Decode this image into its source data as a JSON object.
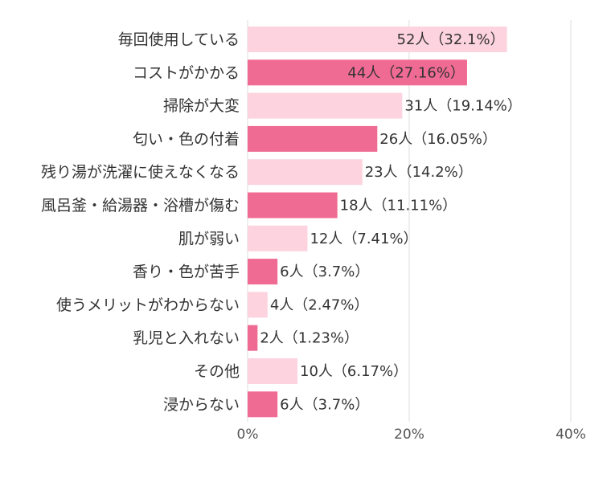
{
  "chart_data": {
    "type": "bar",
    "orientation": "horizontal",
    "categories": [
      "毎回使用している",
      "コストがかかる",
      "掃除が大変",
      "匂い・色の付着",
      "残り湯が洗濯に使えなくなる",
      "風呂釜・給湯器・浴槽が傷む",
      "肌が弱い",
      "香り・色が苦手",
      "使うメリットがわからない",
      "乳児と入れない",
      "その他",
      "浸からない"
    ],
    "values": [
      32.1,
      27.16,
      19.14,
      16.05,
      14.2,
      11.11,
      7.41,
      3.7,
      2.47,
      1.23,
      6.17,
      3.7
    ],
    "value_labels": [
      "52人（32.1%）",
      "44人（27.16%）",
      "31人（19.14%）",
      "26人（16.05%）",
      "23人（14.2%）",
      "18人（11.11%）",
      "12人（7.41%）",
      "6人（3.7%）",
      "4人（2.47%）",
      "2人（1.23%）",
      "10人（6.17%）",
      "6人（3.7%）"
    ],
    "colors": [
      "#fcd3df",
      "#f06b93",
      "#fcd3df",
      "#f06b93",
      "#fcd3df",
      "#f06b93",
      "#fcd3df",
      "#f06b93",
      "#fcd3df",
      "#f06b93",
      "#fcd3df",
      "#f06b93"
    ],
    "xlim": [
      0,
      40
    ],
    "xticks": [
      {
        "value": 0,
        "label": "0%"
      },
      {
        "value": 20,
        "label": "20%"
      },
      {
        "value": 40,
        "label": "40%"
      }
    ],
    "grid": true
  }
}
